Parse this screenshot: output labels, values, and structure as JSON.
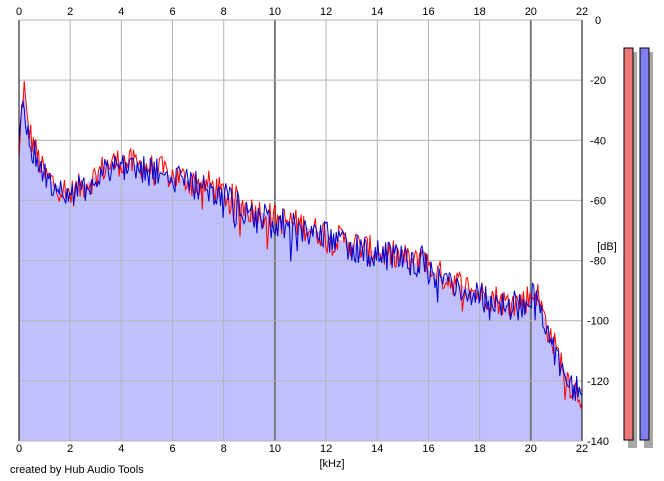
{
  "credit": "created by Hub Audio Tools",
  "colors": {
    "background": "#ffffff",
    "plot_bg": "#ffffff",
    "fill": "#c0c0ff",
    "grid": "#b4b4b4",
    "major_grid": "#7a7a7a",
    "axis": "#000000",
    "left_channel": "#ff0000",
    "right_channel": "#0000cc",
    "meter_left": "#f07878",
    "meter_right": "#8080f0",
    "meter_shadow": "#a8a8a8"
  },
  "chart_data": {
    "type": "line",
    "xlabel": "[kHz]",
    "ylabel": "[dB]",
    "xlim": [
      0,
      22
    ],
    "ylim": [
      -140,
      0
    ],
    "x_ticks": [
      "0",
      "2",
      "4",
      "6",
      "8",
      "10",
      "12",
      "14",
      "16",
      "18",
      "20",
      "22"
    ],
    "x_tick_values": [
      0,
      2,
      4,
      6,
      8,
      10,
      12,
      14,
      16,
      18,
      20,
      22
    ],
    "y_ticks": [
      "0",
      "-20",
      "-40",
      "-60",
      "-80",
      "-100",
      "-120",
      "-140"
    ],
    "y_tick_values": [
      0,
      -20,
      -40,
      -60,
      -80,
      -100,
      -120,
      -140
    ],
    "grid": true,
    "x": [
      0,
      0.1,
      0.2,
      0.3,
      0.5,
      0.75,
      1,
      1.5,
      2,
      2.5,
      3,
      3.2,
      3.5,
      4,
      4.5,
      5,
      5.5,
      6,
      6.5,
      7,
      7.5,
      8,
      8.5,
      9,
      9.5,
      10,
      10.5,
      11,
      11.5,
      12,
      12.5,
      13,
      13.5,
      14,
      14.5,
      15,
      15.5,
      15.8,
      16,
      16.5,
      17,
      17.5,
      18,
      18.5,
      19,
      19.5,
      20,
      20.2,
      20.5,
      20.8,
      21,
      21.3,
      21.6,
      22
    ],
    "series": [
      {
        "values": [
          -48,
          -30,
          -22,
          -33,
          -40,
          -46,
          -52,
          -55,
          -58,
          -55,
          -52,
          -50,
          -48,
          -47,
          -48,
          -49,
          -50,
          -52,
          -53,
          -54,
          -55,
          -58,
          -60,
          -63,
          -64,
          -66,
          -67,
          -68,
          -70,
          -71,
          -73,
          -74,
          -76,
          -77,
          -78,
          -79,
          -81,
          -76,
          -83,
          -85,
          -87,
          -89,
          -91,
          -92,
          -94,
          -94,
          -92,
          -90,
          -98,
          -106,
          -110,
          -116,
          -122,
          -125
        ]
      },
      {
        "values": [
          -45,
          -28,
          -26,
          -35,
          -42,
          -47,
          -52,
          -55,
          -58,
          -56,
          -53,
          -51,
          -49,
          -48,
          -49,
          -50,
          -51,
          -53,
          -54,
          -55,
          -56,
          -59,
          -61,
          -64,
          -65,
          -67,
          -68,
          -69,
          -71,
          -72,
          -74,
          -75,
          -77,
          -78,
          -79,
          -80,
          -82,
          -78,
          -84,
          -86,
          -88,
          -90,
          -92,
          -93,
          -95,
          -95,
          -93,
          -91,
          -99,
          -107,
          -111,
          -117,
          -121,
          -123
        ]
      }
    ]
  }
}
